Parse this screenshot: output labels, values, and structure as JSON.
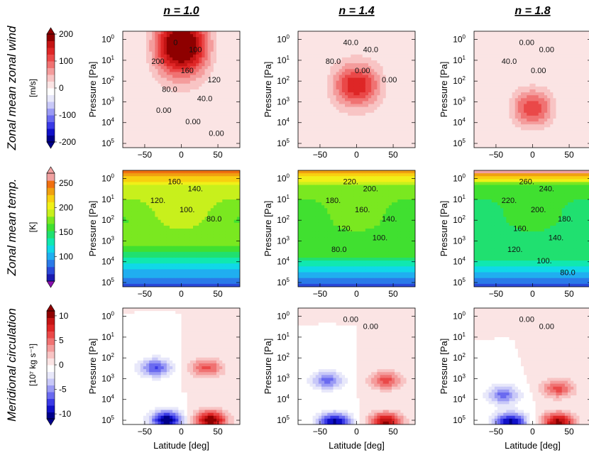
{
  "chart_data": {
    "type": "heatmap",
    "columns": [
      "n = 1.0",
      "n = 1.4",
      "n = 1.8"
    ],
    "rows": [
      {
        "key": "wind",
        "title": "Zonal mean zonal wind",
        "unit": "[m/s]",
        "colorbar": {
          "min": -200,
          "max": 200,
          "ticks": [
            {
              "v": 200,
              "label": "200"
            },
            {
              "v": 100,
              "label": "100"
            },
            {
              "v": 0,
              "label": "0"
            },
            {
              "v": -100,
              "label": "-100"
            },
            {
              "v": -200,
              "label": "-200"
            }
          ],
          "colors": [
            "#00008a",
            "#1010c8",
            "#3a3ae6",
            "#6a6af0",
            "#9a9af4",
            "#c8c8f8",
            "#e8e8fa",
            "#ffffff",
            "#fbe4e4",
            "#f8c4c4",
            "#f49c9c",
            "#f07272",
            "#ea4848",
            "#de2626",
            "#c41414",
            "#8e0000"
          ]
        },
        "panels": [
          {
            "labels": [
              "0",
              "100",
              "200",
              "160",
              "120",
              "80.0",
              "40.0",
              "0.00",
              "0.00",
              "0.00"
            ]
          },
          {
            "labels": [
              "40.0",
              "40.0",
              "80.0",
              "0.00",
              "0.00"
            ]
          },
          {
            "labels": [
              "0.00",
              "0.00",
              "40.0",
              "0.00"
            ]
          }
        ]
      },
      {
        "key": "temp",
        "title": "Zonal mean temp.",
        "unit": "[K]",
        "colorbar": {
          "min": 50,
          "max": 270,
          "ticks": [
            {
              "v": 250,
              "label": "250"
            },
            {
              "v": 200,
              "label": "200"
            },
            {
              "v": 150,
              "label": "150"
            },
            {
              "v": 100,
              "label": "100"
            }
          ],
          "colors": [
            "#1a1ab0",
            "#2a48d8",
            "#2a7ae8",
            "#20aef0",
            "#10d8e8",
            "#10e8b0",
            "#20e070",
            "#40e030",
            "#7ae820",
            "#c8f01c",
            "#f0f018",
            "#f8d010",
            "#f0a010",
            "#f07010",
            "#f0a0a0"
          ]
        },
        "panels": [
          {
            "labels": [
              "160.",
              "140.",
              "120.",
              "100.",
              "80.0"
            ]
          },
          {
            "labels": [
              "220.",
              "200.",
              "180.",
              "160.",
              "140.",
              "120.",
              "100.",
              "80.0"
            ]
          },
          {
            "labels": [
              "260.",
              "240.",
              "220.",
              "200.",
              "180.",
              "160.",
              "140.",
              "120.",
              "100.",
              "80.0"
            ]
          }
        ]
      },
      {
        "key": "circ",
        "title": "Meridional circulation",
        "unit": "[10⁷ kg s⁻¹]",
        "colorbar": {
          "min": -11,
          "max": 11,
          "ticks": [
            {
              "v": 10,
              "label": "10"
            },
            {
              "v": 5,
              "label": "5"
            },
            {
              "v": 0,
              "label": "0"
            },
            {
              "v": -5,
              "label": "-5"
            },
            {
              "v": -10,
              "label": "-10"
            }
          ],
          "colors": [
            "#00008a",
            "#1010c8",
            "#3a3ae6",
            "#6a6af0",
            "#9a9af4",
            "#c8c8f8",
            "#e8e8fa",
            "#ffffff",
            "#fbe4e4",
            "#f8c4c4",
            "#f49c9c",
            "#f07272",
            "#ea4848",
            "#de2626",
            "#c41414",
            "#8e0000"
          ]
        },
        "panels": [
          {
            "labels": []
          },
          {
            "labels": [
              "0.00",
              "0.00"
            ]
          },
          {
            "labels": [
              "0.00",
              "0.00"
            ]
          }
        ]
      }
    ],
    "x_axis": {
      "label": "Latitude [deg]",
      "range": [
        -80,
        80
      ],
      "ticks": [
        {
          "v": -50,
          "label": "−50"
        },
        {
          "v": 0,
          "label": "0"
        },
        {
          "v": 50,
          "label": "50"
        }
      ]
    },
    "y_axis": {
      "label": "Pressure [Pa]",
      "scale": "log",
      "range": [
        160000.0,
        0.4
      ],
      "ticks": [
        {
          "v": 1,
          "label": "10",
          "exp": "0"
        },
        {
          "v": 10,
          "label": "10",
          "exp": "1"
        },
        {
          "v": 100,
          "label": "10",
          "exp": "2"
        },
        {
          "v": 1000,
          "label": "10",
          "exp": "3"
        },
        {
          "v": 10000,
          "label": "10",
          "exp": "4"
        },
        {
          "v": 100000,
          "label": "10",
          "exp": "5"
        }
      ]
    },
    "wind_field": [
      {
        "peak": 230,
        "lat_halfwidth": 60,
        "p_center": 2,
        "p_spread": 1.0,
        "baseline": 5
      },
      {
        "peak": 140,
        "lat_halfwidth": 52,
        "p_center": 160,
        "p_spread": 0.7,
        "baseline": 8
      },
      {
        "peak": 120,
        "lat_halfwidth": 45,
        "p_center": 2000,
        "p_spread": 0.6,
        "baseline": 4
      }
    ],
    "temp_field": [
      {
        "t_top": 250,
        "t_mid": 190,
        "t_bottom": 70,
        "transition_p": 1500
      },
      {
        "t_top": 235,
        "t_mid": 175,
        "t_bottom": 70,
        "transition_p": 5000
      },
      {
        "t_top": 270,
        "t_mid": 160,
        "t_bottom": 70,
        "transition_p": 8000
      }
    ],
    "circ_field": [
      {
        "cells": [
          {
            "lat": -35,
            "p": 300,
            "amp": -7
          },
          {
            "lat": 35,
            "p": 300,
            "amp": 6
          },
          {
            "lat": -20,
            "p": 100000,
            "amp": -11
          },
          {
            "lat": 40,
            "p": 100000,
            "amp": 11
          }
        ]
      },
      {
        "cells": [
          {
            "lat": -40,
            "p": 1200,
            "amp": -6
          },
          {
            "lat": 40,
            "p": 1200,
            "amp": 6
          },
          {
            "lat": -30,
            "p": 120000,
            "amp": -10
          },
          {
            "lat": 40,
            "p": 120000,
            "amp": 10
          }
        ]
      },
      {
        "cells": [
          {
            "lat": -40,
            "p": 6000,
            "amp": -6
          },
          {
            "lat": 35,
            "p": 3000,
            "amp": 6
          },
          {
            "lat": -30,
            "p": 120000,
            "amp": -10
          },
          {
            "lat": 35,
            "p": 120000,
            "amp": 10
          }
        ]
      }
    ]
  }
}
